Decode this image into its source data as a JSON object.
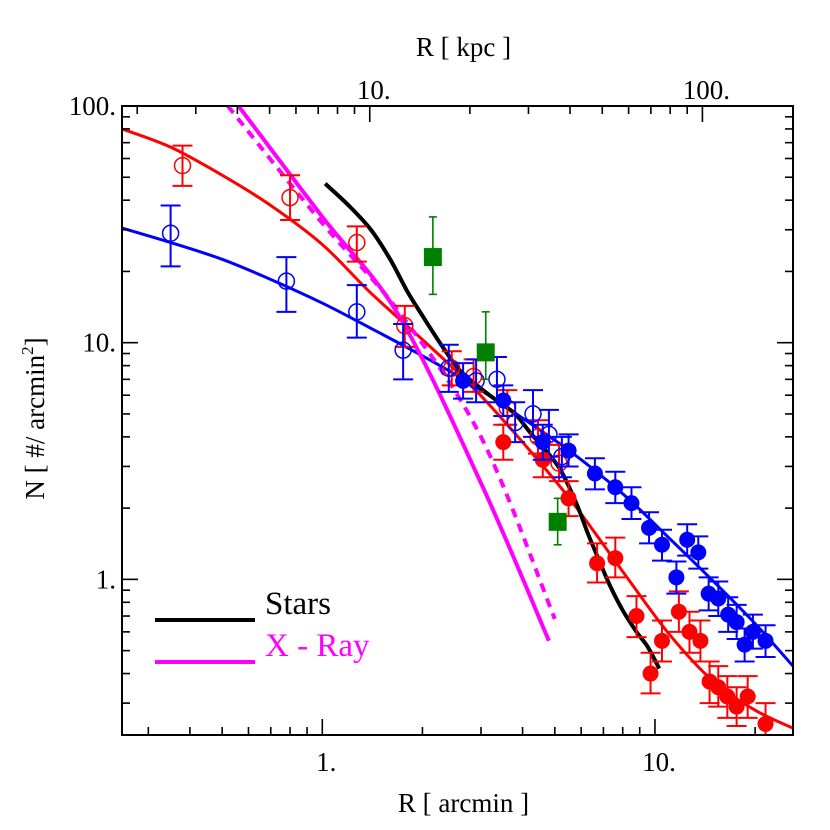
{
  "chart_data": {
    "type": "scatter",
    "xlabel": "R [ arcmin ]",
    "ylabel": "N [ #/ arcmin",
    "ylabel_sup": "2",
    "ylabel_end": "]",
    "x2label": "R [ kpc ]",
    "xscale": "log",
    "yscale": "log",
    "xlim": [
      0.25,
      26
    ],
    "ylim": [
      0.22,
      100
    ],
    "x_ticks": [
      {
        "value": 1,
        "label": "1."
      },
      {
        "value": 10,
        "label": "10."
      }
    ],
    "y_ticks": [
      {
        "value": 1,
        "label": "1."
      },
      {
        "value": 10,
        "label": "10."
      },
      {
        "value": 100,
        "label": "100."
      }
    ],
    "x2_ticks": [
      {
        "value": 10,
        "label": "10."
      },
      {
        "value": 100,
        "label": "100."
      }
    ],
    "x2_per_x": 7.2,
    "legend": {
      "placement": "bottom-left",
      "entries": [
        {
          "label": "Stars",
          "color": "#000000"
        },
        {
          "label": "X - Ray",
          "color": "#ff00ff"
        }
      ]
    },
    "series": [
      {
        "kind": "points",
        "marker": "open-circle",
        "color": "#ff0000",
        "points": [
          [
            0.38,
            56,
            46,
            68
          ],
          [
            0.8,
            41,
            33,
            51
          ],
          [
            1.27,
            26.5,
            22,
            31
          ],
          [
            1.77,
            11.8,
            9.6,
            14.3
          ],
          [
            2.45,
            7.8,
            6.6,
            9.2
          ],
          [
            2.85,
            7.2,
            6.2,
            8.5
          ],
          [
            3.6,
            5.3,
            4.5,
            6.3
          ],
          [
            4.45,
            4.0,
            3.4,
            4.7
          ],
          [
            5.15,
            3.1,
            2.6,
            3.7
          ]
        ]
      },
      {
        "kind": "points",
        "marker": "open-circle",
        "color": "#0000ff",
        "points": [
          [
            0.35,
            29,
            21,
            38
          ],
          [
            0.78,
            18.2,
            13.5,
            23
          ],
          [
            1.27,
            13.5,
            10.5,
            17.5
          ],
          [
            1.75,
            9.3,
            7.0,
            12
          ],
          [
            2.4,
            7.8,
            6.2,
            9.8
          ],
          [
            2.9,
            6.9,
            5.6,
            8.5
          ],
          [
            3.35,
            7.0,
            5.6,
            8.7
          ],
          [
            3.8,
            4.6,
            3.8,
            5.6
          ],
          [
            4.3,
            5.0,
            4.0,
            6.3
          ],
          [
            4.8,
            4.1,
            3.3,
            5.2
          ],
          [
            5.25,
            3.3,
            2.7,
            4.0
          ]
        ]
      },
      {
        "kind": "points",
        "marker": "filled-circle",
        "color": "#ff0000",
        "points": [
          [
            3.5,
            3.8,
            3.2,
            4.5
          ],
          [
            4.6,
            3.2,
            2.7,
            3.8
          ],
          [
            5.5,
            2.2,
            1.85,
            2.6
          ],
          [
            6.7,
            1.17,
            0.97,
            1.42
          ],
          [
            7.6,
            1.23,
            1.02,
            1.5
          ],
          [
            8.8,
            0.7,
            0.57,
            0.85
          ],
          [
            9.7,
            0.4,
            0.33,
            0.49
          ],
          [
            10.5,
            0.55,
            0.45,
            0.67
          ],
          [
            11.8,
            0.73,
            0.6,
            0.89
          ],
          [
            12.7,
            0.6,
            0.49,
            0.73
          ],
          [
            13.7,
            0.55,
            0.45,
            0.67
          ],
          [
            14.6,
            0.37,
            0.3,
            0.45
          ],
          [
            15.5,
            0.35,
            0.29,
            0.43
          ],
          [
            16.5,
            0.32,
            0.26,
            0.39
          ],
          [
            17.6,
            0.29,
            0.24,
            0.35
          ],
          [
            19.0,
            0.32,
            0.26,
            0.39
          ],
          [
            21.5,
            0.245,
            0.2,
            0.3
          ]
        ]
      },
      {
        "kind": "points",
        "marker": "filled-circle",
        "color": "#0000ff",
        "points": [
          [
            2.65,
            6.9,
            5.8,
            8.2
          ],
          [
            3.5,
            5.7,
            4.9,
            6.6
          ],
          [
            4.6,
            3.8,
            3.2,
            4.5
          ],
          [
            5.5,
            3.5,
            3.0,
            4.1
          ],
          [
            6.6,
            2.8,
            2.4,
            3.25
          ],
          [
            7.6,
            2.45,
            2.1,
            2.85
          ],
          [
            8.5,
            2.1,
            1.8,
            2.45
          ],
          [
            9.6,
            1.65,
            1.42,
            1.92
          ],
          [
            10.5,
            1.4,
            1.2,
            1.62
          ],
          [
            11.6,
            1.02,
            0.87,
            1.19
          ],
          [
            12.5,
            1.47,
            1.26,
            1.71
          ],
          [
            13.5,
            1.3,
            1.11,
            1.52
          ],
          [
            14.5,
            0.87,
            0.74,
            1.02
          ],
          [
            15.5,
            0.83,
            0.7,
            0.98
          ],
          [
            16.6,
            0.71,
            0.6,
            0.84
          ],
          [
            17.6,
            0.66,
            0.56,
            0.78
          ],
          [
            18.6,
            0.53,
            0.45,
            0.62
          ],
          [
            19.7,
            0.6,
            0.51,
            0.71
          ],
          [
            21.5,
            0.55,
            0.47,
            0.64
          ]
        ]
      },
      {
        "kind": "points",
        "marker": "filled-square",
        "color": "#008000",
        "points": [
          [
            2.15,
            23,
            16,
            34
          ],
          [
            3.1,
            9.1,
            7.0,
            13.5
          ],
          [
            5.1,
            1.75,
            1.4,
            2.2
          ]
        ]
      },
      {
        "kind": "curve",
        "color": "#ff0000",
        "width": 3,
        "dash": false,
        "points": [
          [
            0.25,
            80
          ],
          [
            0.35,
            67
          ],
          [
            0.5,
            51
          ],
          [
            0.7,
            38
          ],
          [
            1.0,
            26
          ],
          [
            1.4,
            16.2
          ],
          [
            2.0,
            10.3
          ],
          [
            2.8,
            6.6
          ],
          [
            4.0,
            3.8
          ],
          [
            5.6,
            2.15
          ],
          [
            8.0,
            1.08
          ],
          [
            11.0,
            0.59
          ],
          [
            15.0,
            0.37
          ],
          [
            20.0,
            0.28
          ],
          [
            26.0,
            0.235
          ]
        ]
      },
      {
        "kind": "curve",
        "color": "#0000ff",
        "width": 3,
        "dash": false,
        "points": [
          [
            0.25,
            30.5
          ],
          [
            0.35,
            26.5
          ],
          [
            0.5,
            22.5
          ],
          [
            0.7,
            18.5
          ],
          [
            1.0,
            14.7
          ],
          [
            1.4,
            11.5
          ],
          [
            2.0,
            8.8
          ],
          [
            2.8,
            6.7
          ],
          [
            4.0,
            4.8
          ],
          [
            5.6,
            3.45
          ],
          [
            8.0,
            2.3
          ],
          [
            11.0,
            1.5
          ],
          [
            15.0,
            0.98
          ],
          [
            20.0,
            0.65
          ],
          [
            26.0,
            0.43
          ]
        ]
      },
      {
        "kind": "curve",
        "color": "#000000",
        "width": 4,
        "dash": false,
        "points": [
          [
            1.02,
            47
          ],
          [
            1.2,
            38
          ],
          [
            1.4,
            30
          ],
          [
            1.6,
            22.5
          ],
          [
            1.8,
            16.5
          ],
          [
            2.0,
            13
          ],
          [
            2.3,
            9.6
          ],
          [
            2.6,
            7.6
          ],
          [
            3.0,
            6.4
          ],
          [
            3.4,
            5.6
          ],
          [
            3.8,
            5.0
          ],
          [
            4.2,
            4.2
          ],
          [
            4.7,
            3.5
          ],
          [
            5.2,
            2.9
          ],
          [
            5.8,
            2.1
          ],
          [
            6.3,
            1.55
          ],
          [
            6.8,
            1.2
          ],
          [
            7.3,
            0.95
          ],
          [
            8.0,
            0.74
          ],
          [
            8.8,
            0.6
          ],
          [
            9.5,
            0.52
          ],
          [
            10.3,
            0.42
          ]
        ]
      },
      {
        "kind": "curve",
        "color": "#ff00ff",
        "width": 4,
        "dash": false,
        "points": [
          [
            0.56,
            100
          ],
          [
            1.0,
            34
          ],
          [
            1.7,
            13
          ],
          [
            3.0,
            2.55
          ],
          [
            4.8,
            0.55
          ]
        ]
      },
      {
        "kind": "curve",
        "color": "#ff00ff",
        "width": 4,
        "dash": true,
        "points": [
          [
            0.52,
            100
          ],
          [
            1.0,
            32
          ],
          [
            1.7,
            13.5
          ],
          [
            3.0,
            4.0
          ],
          [
            5.0,
            0.68
          ]
        ]
      }
    ]
  }
}
